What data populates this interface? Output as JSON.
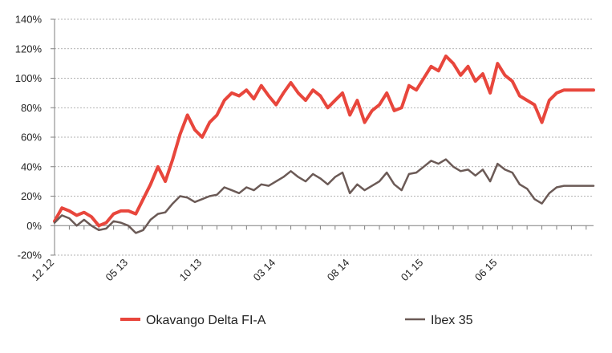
{
  "chart_data": {
    "type": "line",
    "title": "",
    "xlabel": "",
    "ylabel": "",
    "ylim": [
      -20,
      140
    ],
    "y_ticks": [
      "-20%",
      "0%",
      "20%",
      "40%",
      "60%",
      "80%",
      "100%",
      "120%",
      "140%"
    ],
    "y_tick_values": [
      -20,
      0,
      20,
      40,
      60,
      80,
      100,
      120,
      140
    ],
    "x_tick_labels": [
      "12 12",
      "05 13",
      "10 13",
      "03 14",
      "08 14",
      "01 15",
      "06 15"
    ],
    "x_tick_months": [
      0,
      5,
      10,
      15,
      20,
      25,
      30
    ],
    "x_range_months": [
      0,
      36.5
    ],
    "grid": "horizontal dashed",
    "legend_placement": "bottom",
    "series": [
      {
        "name": "Okavango Delta FI-A",
        "color": "#e8463c",
        "x_months": [
          0,
          0.5,
          1,
          1.5,
          2,
          2.5,
          3,
          3.5,
          4,
          4.5,
          5,
          5.5,
          6,
          6.5,
          7,
          7.5,
          8,
          8.5,
          9,
          9.5,
          10,
          10.5,
          11,
          11.5,
          12,
          12.5,
          13,
          13.5,
          14,
          14.5,
          15,
          15.5,
          16,
          16.5,
          17,
          17.5,
          18,
          18.5,
          19,
          19.5,
          20,
          20.5,
          21,
          21.5,
          22,
          22.5,
          23,
          23.5,
          24,
          24.5,
          25,
          25.5,
          26,
          26.5,
          27,
          27.5,
          28,
          28.5,
          29,
          29.5,
          30,
          30.5,
          31,
          31.5,
          32,
          32.5,
          33,
          33.5,
          34,
          34.5,
          35,
          35.5,
          36,
          36.5
        ],
        "values": [
          3,
          12,
          10,
          7,
          9,
          6,
          0,
          2,
          8,
          10,
          10,
          8,
          18,
          28,
          40,
          30,
          45,
          62,
          75,
          65,
          60,
          70,
          75,
          85,
          90,
          88,
          92,
          86,
          95,
          88,
          82,
          90,
          97,
          90,
          85,
          92,
          88,
          80,
          85,
          90,
          75,
          85,
          70,
          78,
          82,
          90,
          78,
          80,
          95,
          92,
          100,
          108,
          105,
          115,
          110,
          102,
          108,
          98,
          103,
          90,
          110,
          102,
          98,
          88,
          85,
          82,
          70,
          85,
          90,
          92,
          92,
          92,
          92,
          92
        ]
      },
      {
        "name": "Ibex 35",
        "color": "#6b5a56",
        "x_months": [
          0,
          0.5,
          1,
          1.5,
          2,
          2.5,
          3,
          3.5,
          4,
          4.5,
          5,
          5.5,
          6,
          6.5,
          7,
          7.5,
          8,
          8.5,
          9,
          9.5,
          10,
          10.5,
          11,
          11.5,
          12,
          12.5,
          13,
          13.5,
          14,
          14.5,
          15,
          15.5,
          16,
          16.5,
          17,
          17.5,
          18,
          18.5,
          19,
          19.5,
          20,
          20.5,
          21,
          21.5,
          22,
          22.5,
          23,
          23.5,
          24,
          24.5,
          25,
          25.5,
          26,
          26.5,
          27,
          27.5,
          28,
          28.5,
          29,
          29.5,
          30,
          30.5,
          31,
          31.5,
          32,
          32.5,
          33,
          33.5,
          34,
          34.5,
          35,
          35.5,
          36,
          36.5
        ],
        "values": [
          2,
          7,
          5,
          0,
          4,
          0,
          -3,
          -2,
          3,
          2,
          0,
          -5,
          -3,
          4,
          8,
          9,
          15,
          20,
          19,
          16,
          18,
          20,
          21,
          26,
          24,
          22,
          26,
          24,
          28,
          27,
          30,
          33,
          37,
          33,
          30,
          35,
          32,
          28,
          33,
          36,
          22,
          28,
          24,
          27,
          30,
          36,
          28,
          24,
          35,
          36,
          40,
          44,
          42,
          45,
          40,
          37,
          38,
          34,
          38,
          30,
          42,
          38,
          36,
          28,
          25,
          18,
          15,
          22,
          26,
          27,
          27,
          27,
          27,
          27
        ]
      }
    ]
  }
}
